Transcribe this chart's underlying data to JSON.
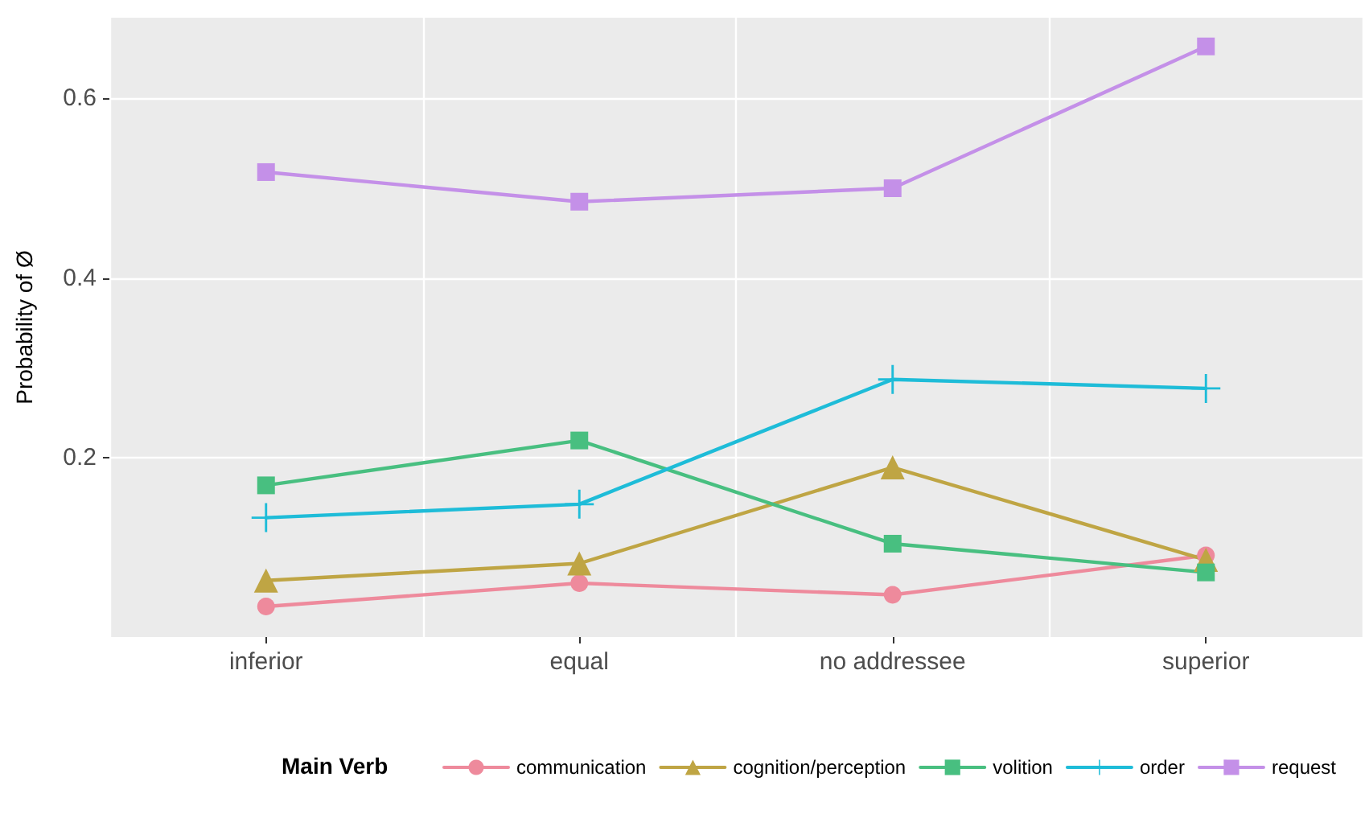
{
  "chart_data": {
    "type": "line",
    "ylabel": "Probability of Ø",
    "legend_title": "Main Verb",
    "categories": [
      "inferior",
      "equal",
      "no addressee",
      "superior"
    ],
    "series": [
      {
        "name": "communication",
        "color": "#ee8a9c",
        "marker": "circle",
        "values": [
          0.034,
          0.06,
          0.047,
          0.091
        ]
      },
      {
        "name": "cognition/perception",
        "color": "#bfa544",
        "marker": "triangle",
        "values": [
          0.063,
          0.082,
          0.189,
          0.086
        ]
      },
      {
        "name": "volition",
        "color": "#48bf80",
        "marker": "square",
        "values": [
          0.169,
          0.219,
          0.104,
          0.072
        ]
      },
      {
        "name": "order",
        "color": "#1ebcd8",
        "marker": "cross",
        "values": [
          0.133,
          0.148,
          0.287,
          0.277
        ]
      },
      {
        "name": "request",
        "color": "#c490e8",
        "marker": "square",
        "values": [
          0.518,
          0.485,
          0.5,
          0.658
        ]
      }
    ],
    "ylim": [
      0,
      0.69
    ],
    "yticks": [
      0.2,
      0.4,
      0.6
    ],
    "grid": true,
    "legend": "bottom",
    "line_style": "solid"
  }
}
